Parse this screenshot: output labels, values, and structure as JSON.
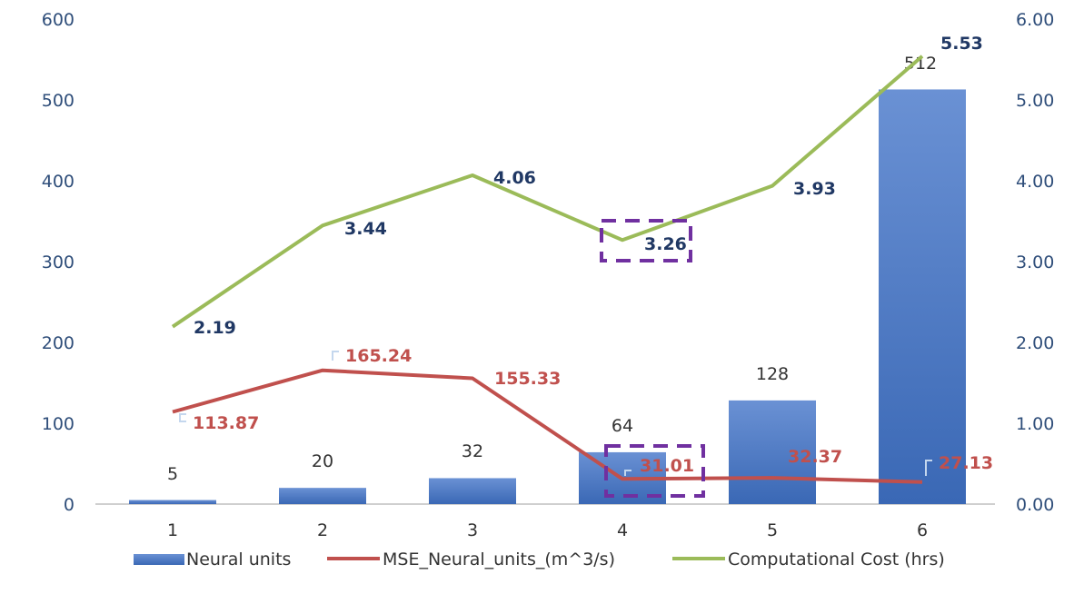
{
  "chart_data": {
    "type": "bar",
    "categories": [
      "1",
      "2",
      "3",
      "4",
      "5",
      "6"
    ],
    "y_left": {
      "ticks": [
        "0",
        "100",
        "200",
        "300",
        "400",
        "500",
        "600"
      ],
      "min": 0,
      "max": 600
    },
    "y_right": {
      "ticks": [
        "0.00",
        "1.00",
        "2.00",
        "3.00",
        "4.00",
        "5.00",
        "6.00"
      ],
      "min": 0,
      "max": 6
    },
    "series": [
      {
        "name": "Neural units",
        "type": "bar",
        "axis": "left",
        "color": "#4472c4",
        "values": [
          5,
          20,
          32,
          64,
          128,
          512
        ],
        "labels": [
          "5",
          "20",
          "32",
          "64",
          "128",
          "512"
        ]
      },
      {
        "name": "MSE_Neural_units_(m^3/s)",
        "type": "line",
        "axis": "right",
        "color": "#c0504d",
        "values": [
          1.1387,
          1.6524,
          1.5533,
          0.3101,
          0.3237,
          0.2713
        ],
        "labels": [
          "113.87",
          "165.24",
          "155.33",
          "31.01",
          "32.37",
          "27.13"
        ]
      },
      {
        "name": "Computational Cost (hrs)",
        "type": "line",
        "axis": "right",
        "color": "#9bbb59",
        "values": [
          2.19,
          3.44,
          4.06,
          3.26,
          3.93,
          5.53
        ],
        "labels": [
          "2.19",
          "3.44",
          "4.06",
          "3.26",
          "3.93",
          "5.53"
        ]
      }
    ],
    "highlight_color": "#7030a0",
    "highlighted_category_index": 3,
    "legend_position": "bottom",
    "grid": false
  }
}
